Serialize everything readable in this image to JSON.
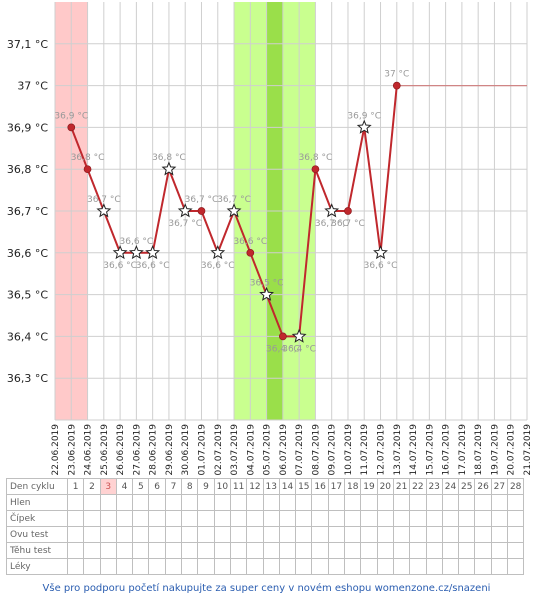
{
  "chart_data": {
    "type": "line",
    "y_ticks": [
      "37,1 °C",
      "37 °C",
      "36,9 °C",
      "36,8 °C",
      "36,7 °C",
      "36,6 °C",
      "36,5 °C",
      "36,4 °C",
      "36,3 °C"
    ],
    "y_tick_values": [
      37.1,
      37.0,
      36.9,
      36.8,
      36.7,
      36.6,
      36.5,
      36.4,
      36.3
    ],
    "ylim": [
      36.2,
      37.2
    ],
    "x": [
      "22.06.2019",
      "23.06.2019",
      "24.06.2019",
      "25.06.2019",
      "26.06.2019",
      "27.06.2019",
      "28.06.2019",
      "29.06.2019",
      "30.06.2019",
      "01.07.2019",
      "02.07.2019",
      "03.07.2019",
      "04.07.2019",
      "05.07.2019",
      "06.07.2019",
      "07.07.2019",
      "08.07.2019",
      "09.07.2019",
      "10.07.2019",
      "11.07.2019",
      "12.07.2019",
      "13.07.2019",
      "14.07.2019",
      "15.07.2019",
      "16.07.2019",
      "17.07.2019",
      "18.07.2019",
      "19.07.2019",
      "20.07.2019",
      "21.07.2019"
    ],
    "grid": true,
    "series": [
      {
        "color": "#c0282d",
        "values": [
          {
            "date": "23.06.2019",
            "y": 36.9,
            "label": "36,9 °C",
            "marker": "dot"
          },
          {
            "date": "24.06.2019",
            "y": 36.8,
            "label": "36,8 °C",
            "marker": "dot"
          },
          {
            "date": "25.06.2019",
            "y": 36.7,
            "label": "36,7 °C",
            "marker": "star"
          },
          {
            "date": "26.06.2019",
            "y": 36.6,
            "label": "36,6 °C",
            "marker": "star"
          },
          {
            "date": "27.06.2019",
            "y": 36.6,
            "label": "36,6 °C",
            "marker": "star"
          },
          {
            "date": "28.06.2019",
            "y": 36.6,
            "label": "36,6 °C",
            "marker": "star"
          },
          {
            "date": "29.06.2019",
            "y": 36.8,
            "label": "36,8 °C",
            "marker": "star"
          },
          {
            "date": "30.06.2019",
            "y": 36.7,
            "label": "36,7 °C",
            "marker": "star"
          },
          {
            "date": "01.07.2019",
            "y": 36.7,
            "label": "36,7 °C",
            "marker": "dot"
          },
          {
            "date": "02.07.2019",
            "y": 36.6,
            "label": "36,6 °C",
            "marker": "star"
          },
          {
            "date": "03.07.2019",
            "y": 36.7,
            "label": "36,7 °C",
            "marker": "star"
          },
          {
            "date": "04.07.2019",
            "y": 36.6,
            "label": "36,6 °C",
            "marker": "dot"
          },
          {
            "date": "05.07.2019",
            "y": 36.5,
            "label": "36,5 °C",
            "marker": "star"
          },
          {
            "date": "06.07.2019",
            "y": 36.4,
            "label": "36,4 °C",
            "marker": "dot"
          },
          {
            "date": "07.07.2019",
            "y": 36.4,
            "label": "36,4 °C",
            "marker": "star"
          },
          {
            "date": "08.07.2019",
            "y": 36.8,
            "label": "36,8 °C",
            "marker": "dot"
          },
          {
            "date": "09.07.2019",
            "y": 36.7,
            "label": "36,7 °C",
            "marker": "star"
          },
          {
            "date": "10.07.2019",
            "y": 36.7,
            "label": "36,7 °C",
            "marker": "dot"
          },
          {
            "date": "11.07.2019",
            "y": 36.9,
            "label": "36,9 °C",
            "marker": "star"
          },
          {
            "date": "12.07.2019",
            "y": 36.6,
            "label": "36,6 °C",
            "marker": "star"
          },
          {
            "date": "13.07.2019",
            "y": 37.0,
            "label": "37 °C",
            "marker": "dot"
          }
        ]
      }
    ],
    "projection": {
      "from": "13.07.2019",
      "to": "21.07.2019",
      "y": 37.0,
      "color": "#d08585"
    },
    "bands": [
      {
        "from": "22.06.2019",
        "to": "24.06.2019",
        "color": "#ffc9c9"
      },
      {
        "from": "03.07.2019",
        "to": "08.07.2019",
        "color": "#c9ff8f"
      },
      {
        "from": "05.07.2019",
        "to": "06.07.2019",
        "color": "#9adf4a"
      }
    ]
  },
  "table": {
    "rows": [
      "Den cyklu",
      "Hlen",
      "Čípek",
      "Ovu test",
      "Těhu test",
      "Léky"
    ],
    "days": [
      "1",
      "2",
      "3",
      "4",
      "5",
      "6",
      "7",
      "8",
      "9",
      "10",
      "11",
      "12",
      "13",
      "14",
      "15",
      "16",
      "17",
      "18",
      "19",
      "20",
      "21",
      "22",
      "23",
      "24",
      "25",
      "26",
      "27",
      "28"
    ],
    "highlight_day": "3"
  },
  "footer": "Vše pro podporu početí nakupujte za super ceny v novém eshopu womenzone.cz/snazeni"
}
